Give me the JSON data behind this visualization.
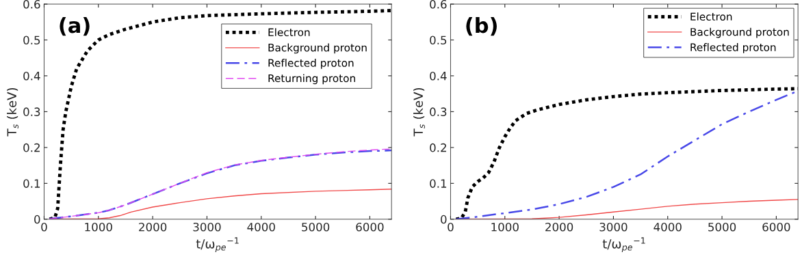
{
  "chart_data": [
    {
      "type": "line",
      "xlabel": "t/ω$_{pe}$$^{−1}$",
      "ylabel": "T$_{s}$ (keV)",
      "annotations": [
        "(a)"
      ],
      "xlim": [
        0,
        6400
      ],
      "ylim": [
        0,
        0.6
      ],
      "xticks": [
        0,
        1000,
        2000,
        3000,
        4000,
        5000,
        6000
      ],
      "yticks": [
        0,
        0.1,
        0.2,
        0.3,
        0.4,
        0.5,
        0.6
      ],
      "grid": false,
      "legend": "top right",
      "series": [
        {
          "name": "Electron",
          "color": "#000000",
          "line_style": "dotted",
          "x": [
            100,
            200,
            250,
            300,
            350,
            400,
            500,
            600,
            800,
            1000,
            1200,
            1500,
            2000,
            2500,
            3000,
            4000,
            5000,
            6000,
            6400
          ],
          "values": [
            0,
            0.005,
            0.03,
            0.15,
            0.25,
            0.3,
            0.37,
            0.42,
            0.47,
            0.5,
            0.515,
            0.53,
            0.55,
            0.562,
            0.568,
            0.573,
            0.577,
            0.58,
            0.582
          ]
        },
        {
          "name": "Background proton",
          "color": "#f04848",
          "line_style": "solid",
          "x": [
            100,
            1000,
            1200,
            1400,
            1600,
            2000,
            2500,
            3000,
            3500,
            4000,
            5000,
            6000,
            6400
          ],
          "values": [
            0,
            0.001,
            0.004,
            0.01,
            0.02,
            0.034,
            0.046,
            0.057,
            0.065,
            0.071,
            0.078,
            0.082,
            0.084
          ]
        },
        {
          "name": "Reflected proton",
          "color": "#4848e8",
          "line_style": "dashdot",
          "x": [
            100,
            500,
            1000,
            1200,
            1500,
            2000,
            2500,
            3000,
            3500,
            4000,
            4500,
            5000,
            5500,
            6000,
            6400
          ],
          "values": [
            0.001,
            0.008,
            0.018,
            0.025,
            0.04,
            0.07,
            0.1,
            0.128,
            0.15,
            0.163,
            0.172,
            0.18,
            0.186,
            0.19,
            0.192
          ]
        },
        {
          "name": "Returning proton",
          "color": "#e048f0",
          "line_style": "dashed",
          "x": [
            100,
            500,
            1000,
            1200,
            1500,
            2000,
            2500,
            3000,
            3500,
            4000,
            4500,
            5000,
            5500,
            6000,
            6400
          ],
          "values": [
            0.001,
            0.008,
            0.018,
            0.025,
            0.04,
            0.07,
            0.1,
            0.13,
            0.151,
            0.164,
            0.173,
            0.181,
            0.188,
            0.193,
            0.196
          ]
        }
      ]
    },
    {
      "type": "line",
      "xlabel": "t/ω$_{pe}$$^{−1}$",
      "ylabel": "T$_{s}$ (keV)",
      "annotations": [
        "(b)"
      ],
      "xlim": [
        0,
        6400
      ],
      "ylim": [
        0,
        0.6
      ],
      "xticks": [
        0,
        1000,
        2000,
        3000,
        4000,
        5000,
        6000
      ],
      "yticks": [
        0,
        0.1,
        0.2,
        0.3,
        0.4,
        0.5,
        0.6
      ],
      "grid": false,
      "legend": "top right",
      "series": [
        {
          "name": "Electron",
          "color": "#000000",
          "line_style": "dotted",
          "x": [
            100,
            200,
            270,
            320,
            400,
            500,
            600,
            700,
            800,
            900,
            1000,
            1100,
            1200,
            1400,
            1600,
            2000,
            2500,
            3000,
            3500,
            4000,
            5000,
            6000,
            6400
          ],
          "values": [
            0,
            0.003,
            0.02,
            0.06,
            0.09,
            0.105,
            0.115,
            0.13,
            0.16,
            0.2,
            0.23,
            0.255,
            0.275,
            0.295,
            0.305,
            0.32,
            0.333,
            0.342,
            0.349,
            0.353,
            0.359,
            0.363,
            0.364
          ]
        },
        {
          "name": "Background proton",
          "color": "#f04848",
          "line_style": "solid",
          "x": [
            100,
            1500,
            2000,
            2500,
            3000,
            3500,
            4000,
            4500,
            5000,
            5500,
            6000,
            6400
          ],
          "values": [
            0,
            0.001,
            0.005,
            0.012,
            0.02,
            0.028,
            0.036,
            0.042,
            0.046,
            0.05,
            0.053,
            0.055
          ]
        },
        {
          "name": "Reflected proton",
          "color": "#4848e8",
          "line_style": "dashdot",
          "x": [
            100,
            500,
            1000,
            1500,
            2000,
            2500,
            3000,
            3500,
            4000,
            4500,
            5000,
            5500,
            6000,
            6400
          ],
          "values": [
            0,
            0.007,
            0.017,
            0.027,
            0.042,
            0.062,
            0.09,
            0.125,
            0.175,
            0.22,
            0.265,
            0.3,
            0.333,
            0.358
          ]
        }
      ]
    }
  ]
}
